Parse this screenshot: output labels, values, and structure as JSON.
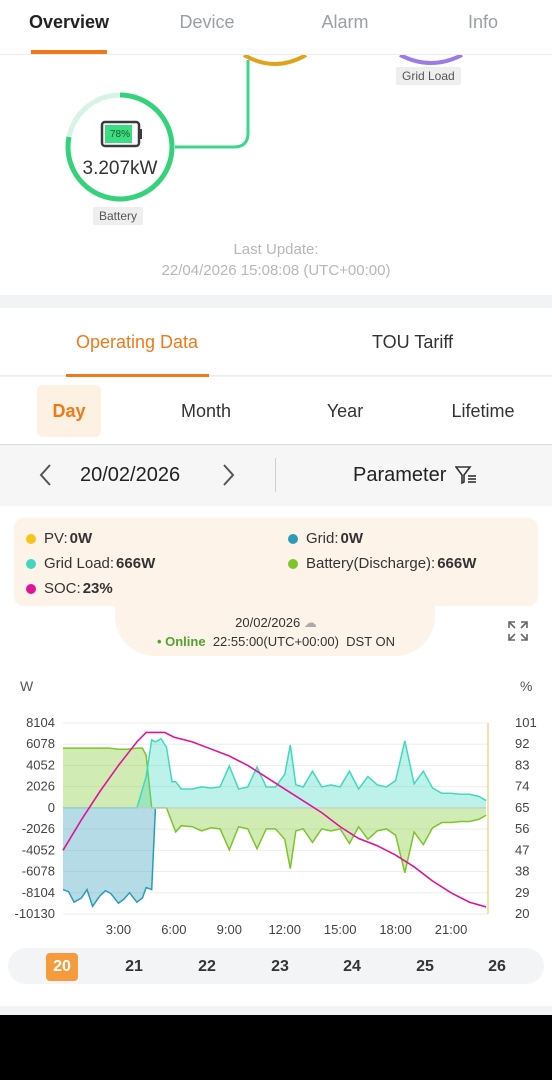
{
  "top_tabs": [
    "Overview",
    "Device",
    "Alarm",
    "Info"
  ],
  "flow": {
    "battery_value": "3.207kW",
    "battery_percent": "78%",
    "battery_label": "Battery",
    "grid_load_label": "Grid Load",
    "battery_ring_fill": 0.78
  },
  "last_update": {
    "label": "Last Update:",
    "time": "22/04/2026 15:08:08 (UTC+00:00)"
  },
  "operating_tabs": [
    "Operating Data",
    "TOU Tariff"
  ],
  "ranges": [
    "Day",
    "Month",
    "Year",
    "Lifetime"
  ],
  "date_nav": {
    "date": "20/02/2026",
    "parameter_label": "Parameter"
  },
  "legend": {
    "pv": {
      "label": "PV:",
      "value": "0W",
      "color": "#f5c518"
    },
    "grid": {
      "label": "Grid:",
      "value": "0W",
      "color": "#2a9cb8"
    },
    "grid_load": {
      "label": "Grid Load:",
      "value": "666W",
      "color": "#40d9c0"
    },
    "battery": {
      "label": "Battery(Discharge):",
      "value": "666W",
      "color": "#7cc52a"
    },
    "soc": {
      "label": "SOC:",
      "value": "23%",
      "color": "#e0139a"
    }
  },
  "status": {
    "date": "20/02/2026",
    "online": "Online",
    "time": "22:55:00(UTC+00:00)",
    "dst": "DST ON"
  },
  "chart_data": {
    "type": "area",
    "ylabel_left": "W",
    "ylabel_right": "%",
    "y_left_ticks": [
      "8104",
      "6078",
      "4052",
      "2026",
      "0",
      "-2026",
      "-4052",
      "-6078",
      "-8104",
      "-10130"
    ],
    "y_right_ticks": [
      "101",
      "92",
      "83",
      "74",
      "65",
      "56",
      "47",
      "38",
      "29",
      "20"
    ],
    "x_ticks": [
      "3:00",
      "6:00",
      "9:00",
      "12:00",
      "15:00",
      "18:00",
      "21:00"
    ],
    "ylim_left": [
      -10130,
      8104
    ],
    "ylim_right": [
      20,
      101
    ],
    "xlim_hours": [
      0,
      23
    ],
    "series": [
      {
        "name": "Grid Load",
        "color": "#40d9c0",
        "x": [
          0,
          1,
          2,
          3,
          4,
          4.5,
          4.8,
          5.0,
          5.3,
          5.6,
          5.9,
          6.1,
          6.4,
          7,
          7.5,
          8,
          8.5,
          9,
          9.5,
          10,
          10.5,
          11,
          11.5,
          12,
          12.3,
          12.6,
          13,
          13.5,
          14,
          14.5,
          15,
          15.5,
          16,
          16.5,
          17,
          17.5,
          18,
          18.5,
          19,
          19.5,
          20,
          20.5,
          21,
          21.5,
          22,
          22.5,
          22.9
        ],
        "y": [
          0,
          0,
          0,
          0,
          0,
          3000,
          6500,
          6300,
          6600,
          5800,
          2500,
          2500,
          1800,
          1800,
          2000,
          1900,
          2000,
          4000,
          1800,
          2000,
          3900,
          2000,
          2000,
          3200,
          6000,
          2200,
          2000,
          3500,
          2000,
          2200,
          2000,
          3500,
          1800,
          3000,
          2200,
          2000,
          2600,
          6400,
          2300,
          3500,
          1900,
          1400,
          1400,
          1300,
          1300,
          1100,
          700
        ]
      },
      {
        "name": "Battery(Discharge)",
        "color": "#7cc52a",
        "x": [
          0,
          0.5,
          1,
          1.5,
          2,
          2.5,
          3,
          3.5,
          4,
          4.3,
          4.5,
          4.8,
          5.0,
          5.3,
          5.6,
          6.1,
          6.4,
          7,
          7.5,
          8,
          8.5,
          9,
          9.5,
          10,
          10.5,
          11,
          11.5,
          12,
          12.3,
          12.6,
          13,
          13.5,
          14,
          14.5,
          15,
          15.5,
          16,
          16.5,
          17,
          17.5,
          18,
          18.5,
          19,
          19.5,
          20,
          20.5,
          21,
          21.5,
          22,
          22.5,
          22.9
        ],
        "y": [
          5700,
          5700,
          5700,
          5700,
          5700,
          5700,
          5600,
          5600,
          5700,
          5700,
          5000,
          0,
          0,
          0,
          0,
          -2300,
          -1700,
          -1800,
          -2200,
          -1900,
          -2000,
          -4000,
          -1800,
          -2000,
          -3900,
          -2000,
          -2000,
          -3000,
          -5800,
          -2200,
          -2000,
          -3300,
          -2000,
          -2200,
          -2000,
          -3400,
          -1800,
          -3000,
          -2200,
          -2000,
          -2600,
          -6200,
          -2300,
          -3500,
          -1900,
          -1400,
          -1400,
          -1300,
          -1300,
          -1100,
          -700
        ]
      },
      {
        "name": "Grid",
        "color": "#2a9cb8",
        "x": [
          0,
          0.3,
          0.6,
          1,
          1.3,
          1.6,
          2,
          2.3,
          2.6,
          3,
          3.3,
          3.6,
          4,
          4.3,
          4.5,
          4.8,
          5.0
        ],
        "y": [
          -7800,
          -8000,
          -9000,
          -8600,
          -7800,
          -9400,
          -8400,
          -7900,
          -8200,
          -9100,
          -8700,
          -8100,
          -9000,
          -8600,
          -7600,
          -7800,
          -100
        ]
      },
      {
        "name": "SOC",
        "color": "#e0139a",
        "axis": "right",
        "x": [
          0,
          1,
          2,
          3,
          4,
          4.5,
          5,
          5.5,
          6,
          7,
          8,
          9,
          10,
          11,
          12,
          13,
          14,
          15,
          16,
          17,
          18,
          19,
          20,
          21,
          22,
          22.9
        ],
        "y": [
          47,
          60,
          72,
          83,
          93,
          97,
          97,
          97,
          95,
          93,
          90,
          87,
          83,
          78,
          73,
          68,
          63,
          57,
          52,
          49,
          45,
          40,
          34,
          29,
          25,
          23
        ]
      },
      {
        "name": "PV",
        "color": "#f5c518",
        "x": [
          0,
          22.9
        ],
        "y": [
          0,
          0
        ]
      }
    ]
  },
  "days": [
    "20",
    "21",
    "22",
    "23",
    "24",
    "25",
    "26"
  ]
}
